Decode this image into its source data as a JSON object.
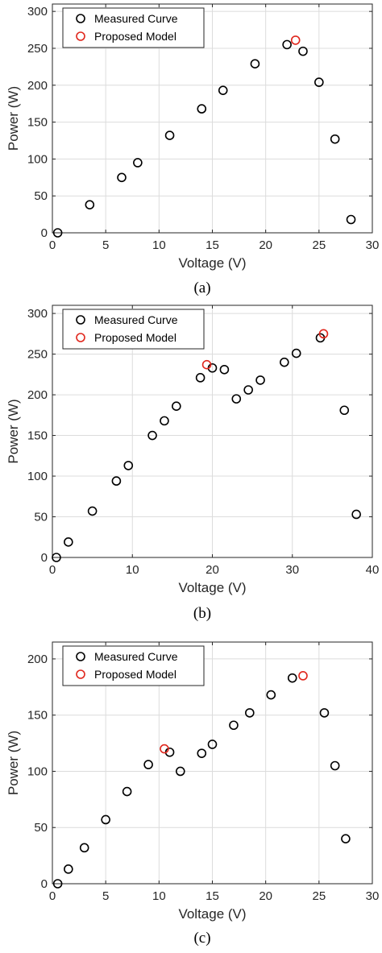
{
  "chart_data": [
    {
      "type": "scatter",
      "caption": "(a)",
      "xlabel": "Voltage (V)",
      "ylabel": "Power (W)",
      "xlim": [
        0,
        30
      ],
      "ylim": [
        0,
        310
      ],
      "xticks": [
        0,
        5,
        10,
        15,
        20,
        25,
        30
      ],
      "yticks": [
        0,
        50,
        100,
        150,
        200,
        250,
        300
      ],
      "grid": true,
      "legend_position": "top-left",
      "series": [
        {
          "name": "Measured Curve",
          "color": "#000000",
          "marker": "open-circle",
          "points": [
            [
              0.5,
              0
            ],
            [
              3.5,
              38
            ],
            [
              6.5,
              75
            ],
            [
              8,
              95
            ],
            [
              11,
              132
            ],
            [
              14,
              168
            ],
            [
              16,
              193
            ],
            [
              19,
              229
            ],
            [
              22,
              255
            ],
            [
              23.5,
              246
            ],
            [
              25,
              204
            ],
            [
              26.5,
              127
            ],
            [
              28,
              18
            ]
          ]
        },
        {
          "name": "Proposed Model",
          "color": "#e0261c",
          "marker": "open-circle",
          "points": [
            [
              22.8,
              261
            ]
          ]
        }
      ]
    },
    {
      "type": "scatter",
      "caption": "(b)",
      "xlabel": "Voltage (V)",
      "ylabel": "Power (W)",
      "xlim": [
        0,
        40
      ],
      "ylim": [
        0,
        310
      ],
      "xticks": [
        0,
        10,
        20,
        30,
        40
      ],
      "yticks": [
        0,
        50,
        100,
        150,
        200,
        250,
        300
      ],
      "grid": true,
      "legend_position": "top-left",
      "series": [
        {
          "name": "Measured Curve",
          "color": "#000000",
          "marker": "open-circle",
          "points": [
            [
              0.5,
              0
            ],
            [
              2,
              19
            ],
            [
              5,
              57
            ],
            [
              8,
              94
            ],
            [
              9.5,
              113
            ],
            [
              12.5,
              150
            ],
            [
              14,
              168
            ],
            [
              15.5,
              186
            ],
            [
              18.5,
              221
            ],
            [
              20,
              233
            ],
            [
              21.5,
              231
            ],
            [
              23,
              195
            ],
            [
              24.5,
              206
            ],
            [
              26,
              218
            ],
            [
              29,
              240
            ],
            [
              30.5,
              251
            ],
            [
              33.5,
              270
            ],
            [
              36.5,
              181
            ],
            [
              38,
              53
            ]
          ]
        },
        {
          "name": "Proposed Model",
          "color": "#e0261c",
          "marker": "open-circle",
          "points": [
            [
              19.3,
              237
            ],
            [
              33.9,
              275
            ]
          ]
        }
      ]
    },
    {
      "type": "scatter",
      "caption": "(c)",
      "xlabel": "Voltage (V)",
      "ylabel": "Power (W)",
      "xlim": [
        0,
        30
      ],
      "ylim": [
        0,
        215
      ],
      "xticks": [
        0,
        5,
        10,
        15,
        20,
        25,
        30
      ],
      "yticks": [
        0,
        50,
        100,
        150,
        200
      ],
      "grid": true,
      "legend_position": "top-left",
      "series": [
        {
          "name": "Measured Curve",
          "color": "#000000",
          "marker": "open-circle",
          "points": [
            [
              0.5,
              0
            ],
            [
              1.5,
              13
            ],
            [
              3,
              32
            ],
            [
              5,
              57
            ],
            [
              7,
              82
            ],
            [
              9,
              106
            ],
            [
              11,
              117
            ],
            [
              12,
              100
            ],
            [
              14,
              116
            ],
            [
              15,
              124
            ],
            [
              17,
              141
            ],
            [
              18.5,
              152
            ],
            [
              20.5,
              168
            ],
            [
              22.5,
              183
            ],
            [
              25.5,
              152
            ],
            [
              26.5,
              105
            ],
            [
              27.5,
              40
            ]
          ]
        },
        {
          "name": "Proposed Model",
          "color": "#e0261c",
          "marker": "open-circle",
          "points": [
            [
              10.5,
              120
            ],
            [
              23.5,
              185
            ]
          ]
        }
      ]
    }
  ]
}
